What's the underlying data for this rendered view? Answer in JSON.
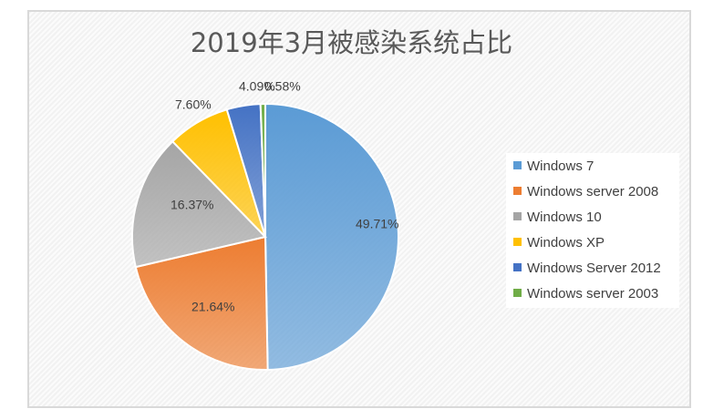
{
  "chart_data": {
    "type": "pie",
    "title": "2019年3月被感染系统占比",
    "legend_position": "right",
    "slices": [
      {
        "name": "Windows 7",
        "value": 49.71,
        "label": "49.71%",
        "color": "#5b9bd5"
      },
      {
        "name": "Windows server 2008",
        "value": 21.64,
        "label": "21.64%",
        "color": "#ed7d31"
      },
      {
        "name": "Windows 10",
        "value": 16.37,
        "label": "16.37%",
        "color": "#a5a5a5"
      },
      {
        "name": "Windows XP",
        "value": 7.6,
        "label": "7.60%",
        "color": "#ffc000"
      },
      {
        "name": "Windows Server 2012",
        "value": 4.09,
        "label": "4.09%",
        "color": "#4472c4"
      },
      {
        "name": "Windows server 2003",
        "value": 0.58,
        "label": "0.58%",
        "color": "#70ad47"
      }
    ]
  }
}
